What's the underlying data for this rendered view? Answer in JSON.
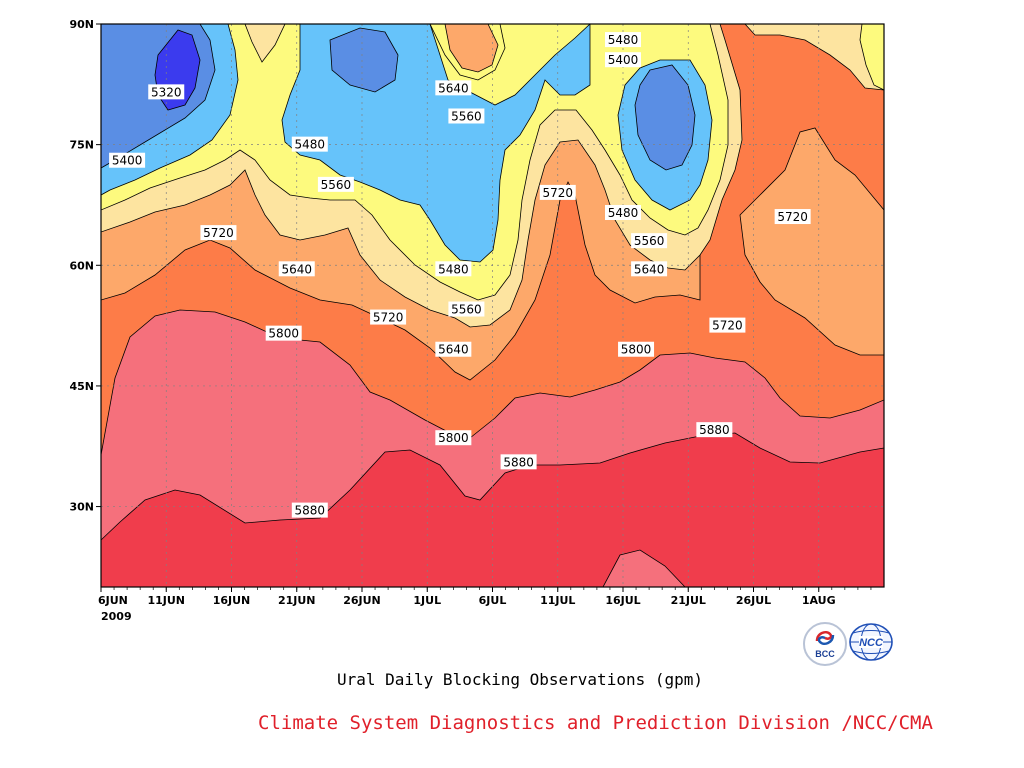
{
  "chart_data": {
    "type": "heatmap",
    "title": "Ural Daily Blocking Observations (gpm)",
    "x_ticks": [
      "6JUN",
      "11JUN",
      "16JUN",
      "21JUN",
      "26JUN",
      "1JUL",
      "6JUL",
      "11JUL",
      "16JUL",
      "21JUL",
      "26JUL",
      "1AUG"
    ],
    "x_year": "2009",
    "x_range": [
      "2009-06-06",
      "2009-08-05"
    ],
    "y_ticks": [
      "90N",
      "75N",
      "60N",
      "45N",
      "30N"
    ],
    "y_tick_values": [
      90,
      75,
      60,
      45,
      30
    ],
    "y_range": [
      20,
      90
    ],
    "grid": true,
    "contour_levels": [
      5320,
      5400,
      5480,
      5560,
      5640,
      5720,
      5800,
      5880
    ],
    "contour_labels": [
      {
        "value": "5320",
        "date": "2009-06-11",
        "lat": 81.5
      },
      {
        "value": "5400",
        "date": "2009-06-08",
        "lat": 73.0
      },
      {
        "value": "5480",
        "date": "2009-06-22",
        "lat": 75.0
      },
      {
        "value": "5560",
        "date": "2009-06-24",
        "lat": 70.0
      },
      {
        "value": "5720",
        "date": "2009-06-15",
        "lat": 64.0
      },
      {
        "value": "5640",
        "date": "2009-06-21",
        "lat": 59.5
      },
      {
        "value": "5800",
        "date": "2009-06-20",
        "lat": 51.5
      },
      {
        "value": "5720",
        "date": "2009-06-28",
        "lat": 53.5
      },
      {
        "value": "5880",
        "date": "2009-06-22",
        "lat": 29.5
      },
      {
        "value": "5640",
        "date": "2009-07-03",
        "lat": 82.0
      },
      {
        "value": "5560",
        "date": "2009-07-04",
        "lat": 78.5
      },
      {
        "value": "5480",
        "date": "2009-07-03",
        "lat": 59.5
      },
      {
        "value": "5560",
        "date": "2009-07-04",
        "lat": 54.5
      },
      {
        "value": "5640",
        "date": "2009-07-03",
        "lat": 49.5
      },
      {
        "value": "5800",
        "date": "2009-07-03",
        "lat": 38.5
      },
      {
        "value": "5880",
        "date": "2009-07-08",
        "lat": 35.5
      },
      {
        "value": "5720",
        "date": "2009-07-11",
        "lat": 69.0
      },
      {
        "value": "5480",
        "date": "2009-07-16",
        "lat": 88.0
      },
      {
        "value": "5400",
        "date": "2009-07-16",
        "lat": 85.5
      },
      {
        "value": "5480",
        "date": "2009-07-16",
        "lat": 66.5
      },
      {
        "value": "5560",
        "date": "2009-07-18",
        "lat": 63.0
      },
      {
        "value": "5640",
        "date": "2009-07-18",
        "lat": 59.5
      },
      {
        "value": "5800",
        "date": "2009-07-17",
        "lat": 49.5
      },
      {
        "value": "5720",
        "date": "2009-07-24",
        "lat": 52.5
      },
      {
        "value": "5880",
        "date": "2009-07-23",
        "lat": 39.5
      },
      {
        "value": "5720",
        "date": "2009-07-29",
        "lat": 66.0
      }
    ],
    "colors": {
      "below_5320": "#3b3bee",
      "5320_5400": "#5a8ee4",
      "5400_5480": "#66c3fa",
      "5480_5560": "#fdfa7e",
      "5560_5640": "#fde4a0",
      "5640_5720": "#fda86a",
      "5720_5800": "#fd7c48",
      "5800_5880": "#f5707c",
      "above_5880": "#f03d4c"
    }
  },
  "footer": {
    "credit": "Climate System Diagnostics and Prediction Division /NCC/CMA",
    "credit_color": "#e0202a",
    "logos": [
      {
        "name": "bcc-logo",
        "text": "BCC"
      },
      {
        "name": "ncc-logo",
        "text": "NCC"
      }
    ]
  }
}
